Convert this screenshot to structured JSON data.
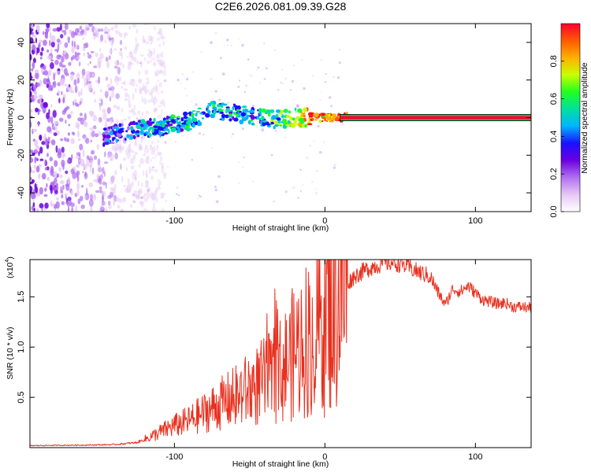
{
  "chart_data": [
    {
      "id": "spectrogram",
      "type": "heatmap",
      "title": "C2E6.2026.081.09.39.G28",
      "xlabel": "Height of straight line (km)",
      "ylabel": "Frequency (Hz)",
      "xlim": [
        -196,
        137
      ],
      "ylim": [
        -50,
        50
      ],
      "xticks": [
        -100,
        0,
        100
      ],
      "yticks": [
        -40,
        -20,
        0,
        20,
        40
      ],
      "xtick_labels": [
        "-100",
        "0",
        "100"
      ],
      "ytick_labels": [
        "-40",
        "-20",
        "0",
        "20",
        "40"
      ],
      "colorbar": {
        "label": "Normalized spectral amplitude",
        "range": [
          0,
          1
        ],
        "ticks": [
          0.0,
          0.2,
          0.4,
          0.6,
          0.8
        ],
        "tick_labels": [
          "0.0",
          "0.2",
          "0.4",
          "0.6",
          "0.8"
        ],
        "colormap": [
          "#ffffff",
          "#e6c8f5",
          "#b070f0",
          "#6a00e0",
          "#1a10ff",
          "#00b4ff",
          "#00e0a0",
          "#20ff20",
          "#c8ff00",
          "#ffb000",
          "#ff5a00",
          "#ff0030"
        ]
      },
      "ridge": {
        "description": "dominant signal band (frequency vs height)",
        "x": [
          -145,
          -130,
          -110,
          -90,
          -75,
          -60,
          -45,
          -30,
          -20,
          -10,
          0,
          10,
          137
        ],
        "freq": [
          -10,
          -7,
          -5,
          -2,
          4,
          3,
          0,
          -1,
          0,
          0,
          0,
          0,
          0
        ],
        "amplitude": [
          0.3,
          0.38,
          0.42,
          0.5,
          0.45,
          0.48,
          0.45,
          0.55,
          0.65,
          0.85,
          0.85,
          0.95,
          1.0
        ]
      },
      "noise_region": {
        "x_range": [
          -196,
          -120
        ],
        "amplitude": "low (0.1-0.25)"
      }
    },
    {
      "id": "snr",
      "type": "line",
      "xlabel": "Height of straight line (km)",
      "ylabel": "SNR (10 * v/v)",
      "y_scale_label": "(x10",
      "y_scale_exponent": "4",
      "xlim": [
        -196,
        137
      ],
      "ylim": [
        0,
        18700
      ],
      "xticks": [
        -100,
        0,
        100
      ],
      "yticks": [
        5000,
        10000,
        15000
      ],
      "xtick_labels": [
        "-100",
        "0",
        "100"
      ],
      "ytick_labels": [
        "0.5",
        "1.0",
        "1.5"
      ],
      "line_color": "#e8301e",
      "series": [
        {
          "name": "SNR envelope",
          "x": [
            -196,
            -160,
            -140,
            -125,
            -120,
            -110,
            -100,
            -90,
            -80,
            -70,
            -60,
            -50,
            -40,
            -35,
            -30,
            -25,
            -20,
            -15,
            -10,
            -5,
            0,
            5,
            10,
            15,
            20,
            30,
            40,
            45,
            50,
            55,
            60,
            65,
            70,
            75,
            80,
            85,
            90,
            95,
            100,
            105,
            110,
            115,
            120,
            125,
            130,
            137
          ],
          "y": [
            200,
            250,
            300,
            500,
            800,
            1500,
            2200,
            2700,
            3500,
            4300,
            5000,
            5800,
            6600,
            7000,
            7600,
            8500,
            9600,
            10400,
            11200,
            12000,
            13200,
            14300,
            15300,
            16300,
            17100,
            17900,
            18400,
            18400,
            18300,
            18000,
            17600,
            17300,
            17000,
            15500,
            14200,
            15800,
            15500,
            16100,
            15400,
            14700,
            14500,
            14300,
            14400,
            14000,
            14000,
            13900
          ]
        }
      ]
    }
  ]
}
